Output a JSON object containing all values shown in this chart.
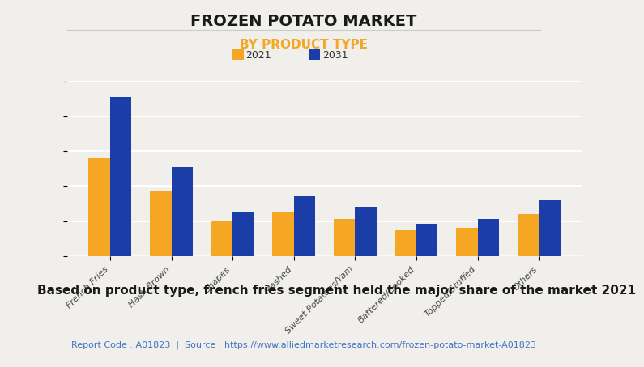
{
  "title": "FROZEN POTATO MARKET",
  "subtitle": "BY PRODUCT TYPE",
  "categories": [
    "French Fries",
    "Hash Brown",
    "Shapes",
    "Mashed",
    "Sweet Potatoes/Yam",
    "Battered/Cooked",
    "Topped/Stuffed",
    "Others"
  ],
  "values_2021": [
    4.2,
    2.8,
    1.5,
    1.9,
    1.6,
    1.1,
    1.2,
    1.8
  ],
  "values_2031": [
    6.8,
    3.8,
    1.9,
    2.6,
    2.1,
    1.4,
    1.6,
    2.4
  ],
  "color_2021": "#F5A623",
  "color_2031": "#1A3DA8",
  "legend_labels": [
    "2021",
    "2031"
  ],
  "background_color": "#F0EFEB",
  "grid_color": "#FFFFFF",
  "annotation": "Based on product type, french fries segment held the major share of the market 2021",
  "footer": "Report Code : A01823  |  Source : https://www.alliedmarketresearch.com/frozen-potato-market-A01823",
  "footer_color": "#4472C4",
  "subtitle_color": "#F5A623",
  "title_fontsize": 14,
  "subtitle_fontsize": 11,
  "annotation_fontsize": 11,
  "footer_fontsize": 8
}
